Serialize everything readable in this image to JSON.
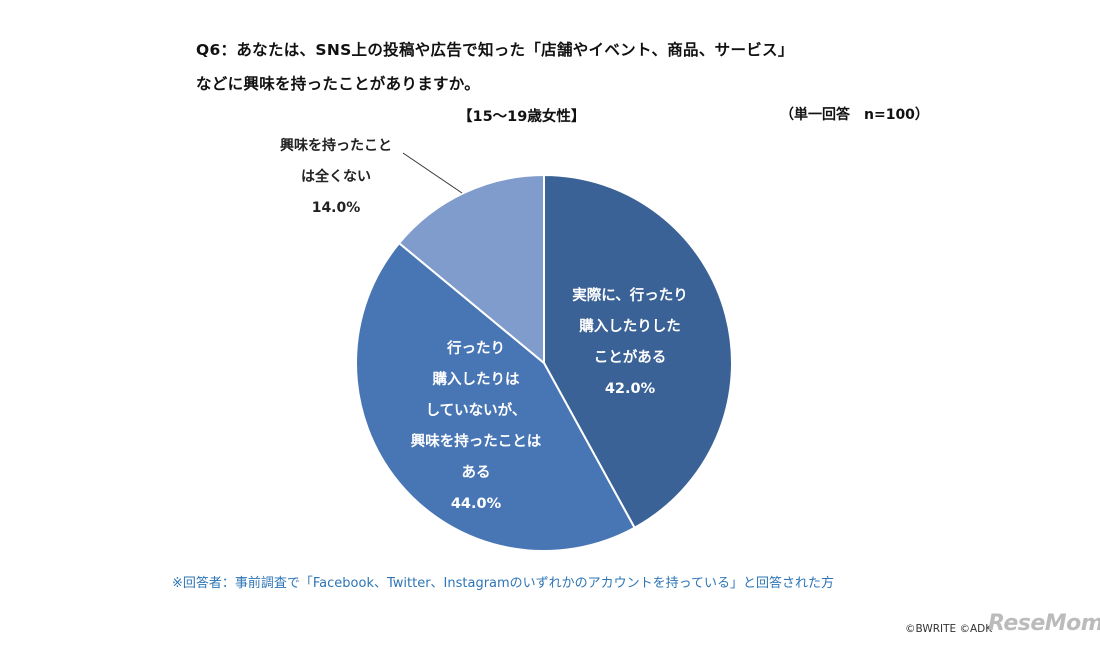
{
  "title_line1": "Q6：あなたは、SNS上の投稿や広告で知った「店舗やイベント、商品、サービス」",
  "title_line2": "などに興味を持ったことがありますか。",
  "subtitle": "【15～19歳女性】",
  "basis": "（単一回答　n=100）",
  "footnote": "※回答者：事前調査で「Facebook、Twitter、Instagramのいずれかのアカウントを持っている」と回答された方",
  "credit": "©BWRITE ©ADK",
  "logo": "ReseMom",
  "chart_data": {
    "type": "pie",
    "title": "",
    "slices": [
      {
        "label": "実際に、行ったり購入したりしたことがある",
        "label_lines": [
          "実際に、行ったり",
          "購入したりした",
          "ことがある"
        ],
        "value": 42.0,
        "value_label": "42.0%",
        "color": "#3b6296"
      },
      {
        "label": "行ったり購入したりはしていないが、興味を持ったことはある",
        "label_lines": [
          "行ったり",
          "購入したりは",
          "していないが、",
          "興味を持ったことは",
          "ある"
        ],
        "value": 44.0,
        "value_label": "44.0%",
        "color": "#4876b4"
      },
      {
        "label": "興味を持ったことは全くない",
        "label_lines": [
          "興味を持ったこと",
          "は全くない"
        ],
        "value": 14.0,
        "value_label": "14.0%",
        "color": "#7f9ccc"
      }
    ]
  }
}
